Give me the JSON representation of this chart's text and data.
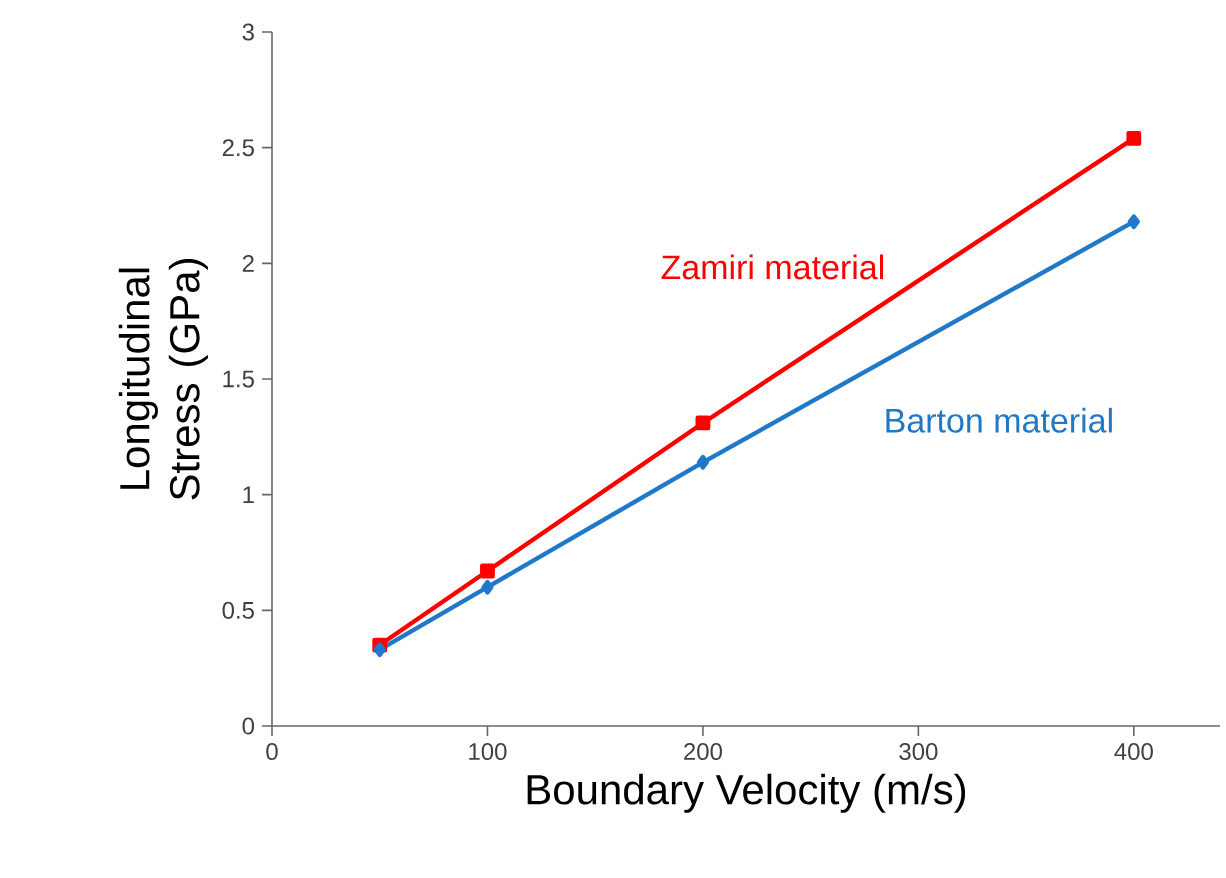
{
  "chart_data": {
    "type": "line",
    "xlabel": "Boundary Velocity (m/s)",
    "ylabel": "Longitudinal Stress (GPa)",
    "xlim": [
      0,
      440
    ],
    "xticks": [
      0,
      100,
      200,
      300,
      400
    ],
    "ylim": [
      0,
      3
    ],
    "yticks": [
      0,
      0.5,
      1,
      1.5,
      2,
      2.5,
      3
    ],
    "grid": false,
    "legend": false,
    "series": [
      {
        "name": "Zamiri material",
        "color": "#ff0000",
        "marker": "square",
        "x": [
          50,
          100,
          200,
          400
        ],
        "values": [
          0.35,
          0.67,
          1.31,
          2.54
        ]
      },
      {
        "name": "Barton material",
        "color": "#1f78c8",
        "marker": "diamond",
        "x": [
          50,
          100,
          200,
          400
        ],
        "values": [
          0.33,
          0.6,
          1.14,
          2.18
        ]
      }
    ]
  }
}
